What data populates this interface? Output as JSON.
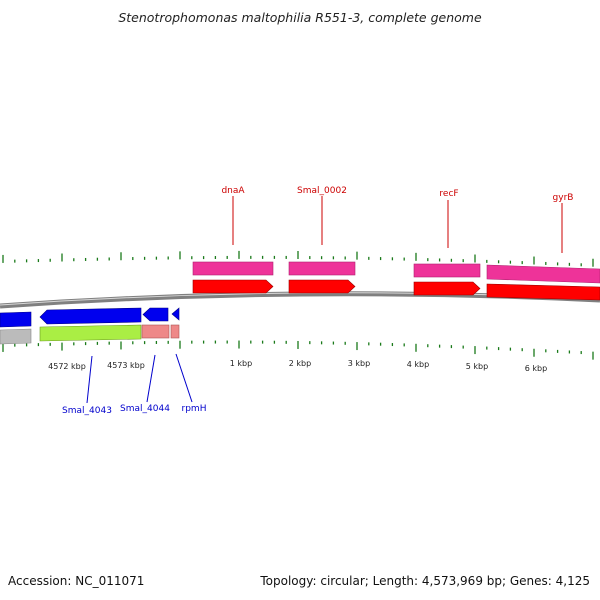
{
  "header": {
    "title": "Stenotrophomonas maltophilia R551-3, complete genome"
  },
  "footer": {
    "accession": "Accession: NC_011071",
    "summary": "Topology: circular; Length: 4,573,969 bp; Genes: 4,125"
  },
  "colors": {
    "forward_label": "#cc0000",
    "reverse_label": "#0000cc",
    "tick": "#1a7a1a",
    "backbone": "#808080",
    "cds_forward": "#ff0000",
    "gene_forward": "#ee3399",
    "cds_reverse": "#0000ee",
    "gene_reverse_a": "#aaee44",
    "gene_reverse_b": "#ee8888",
    "gene_reverse_gray": "#bbbbbb"
  },
  "forward_genes": [
    {
      "id": "dnaA",
      "label": "dnaA"
    },
    {
      "id": "smal0002",
      "label": "Smal_0002"
    },
    {
      "id": "recF",
      "label": "recF"
    },
    {
      "id": "gyrB",
      "label": "gyrB"
    }
  ],
  "reverse_genes": [
    {
      "id": "smal4043",
      "label": "Smal_4043"
    },
    {
      "id": "smal4044",
      "label": "Smal_4044"
    },
    {
      "id": "rpmH",
      "label": "rpmH"
    }
  ],
  "scale_labels": [
    {
      "id": "4572",
      "label": "4572 kbp"
    },
    {
      "id": "4573",
      "label": "4573 kbp"
    },
    {
      "id": "1",
      "label": "1 kbp"
    },
    {
      "id": "2",
      "label": "2 kbp"
    },
    {
      "id": "3",
      "label": "3 kbp"
    },
    {
      "id": "4",
      "label": "4 kbp"
    },
    {
      "id": "5",
      "label": "5 kbp"
    },
    {
      "id": "6",
      "label": "6 kbp"
    }
  ]
}
